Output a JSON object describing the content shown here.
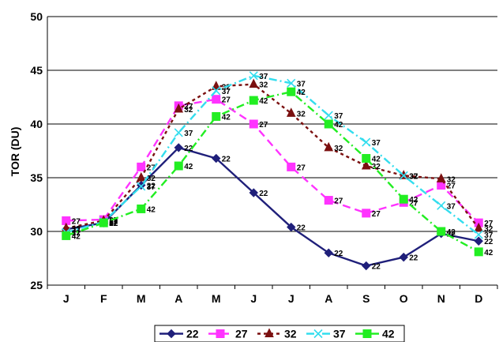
{
  "chart_data": {
    "type": "line",
    "title": "",
    "xlabel": "",
    "ylabel": "TOR (DU)",
    "categories": [
      "J",
      "F",
      "M",
      "A",
      "M",
      "J",
      "J",
      "A",
      "S",
      "O",
      "N",
      "D"
    ],
    "ylim": [
      25,
      50
    ],
    "yticks": [
      25,
      30,
      35,
      40,
      45,
      50
    ],
    "grid": true,
    "legend": "bottom",
    "series": [
      {
        "name": "22",
        "color": "#1F1F7A",
        "dash": "solid",
        "marker": "diamond",
        "values": [
          30.2,
          30.8,
          34.3,
          37.8,
          36.8,
          33.6,
          30.4,
          28.0,
          26.8,
          27.6,
          29.8,
          29.1
        ]
      },
      {
        "name": "27",
        "color": "#FF33FF",
        "dash": "dash",
        "marker": "square",
        "values": [
          31.0,
          31.1,
          36.0,
          41.7,
          42.3,
          40.0,
          36.0,
          32.9,
          31.7,
          32.7,
          34.3,
          30.8
        ]
      },
      {
        "name": "32",
        "color": "#7B1010",
        "dash": "dot",
        "marker": "triangle",
        "values": [
          30.3,
          31.0,
          35.0,
          41.4,
          43.5,
          43.7,
          41.0,
          37.8,
          36.1,
          35.2,
          34.9,
          30.3
        ]
      },
      {
        "name": "37",
        "color": "#33DDEE",
        "dash": "dashdot",
        "marker": "x",
        "values": [
          29.9,
          30.9,
          34.2,
          39.2,
          43.1,
          44.5,
          43.8,
          40.8,
          38.3,
          35.2,
          32.4,
          29.7
        ]
      },
      {
        "name": "42",
        "color": "#22EE22",
        "dash": "dashdot",
        "marker": "square",
        "values": [
          29.6,
          30.8,
          32.1,
          36.1,
          40.7,
          42.2,
          43.0,
          40.0,
          36.8,
          33.0,
          30.0,
          28.1
        ]
      }
    ],
    "data_label_texts": [
      "22",
      "27",
      "32",
      "37",
      "42"
    ]
  }
}
